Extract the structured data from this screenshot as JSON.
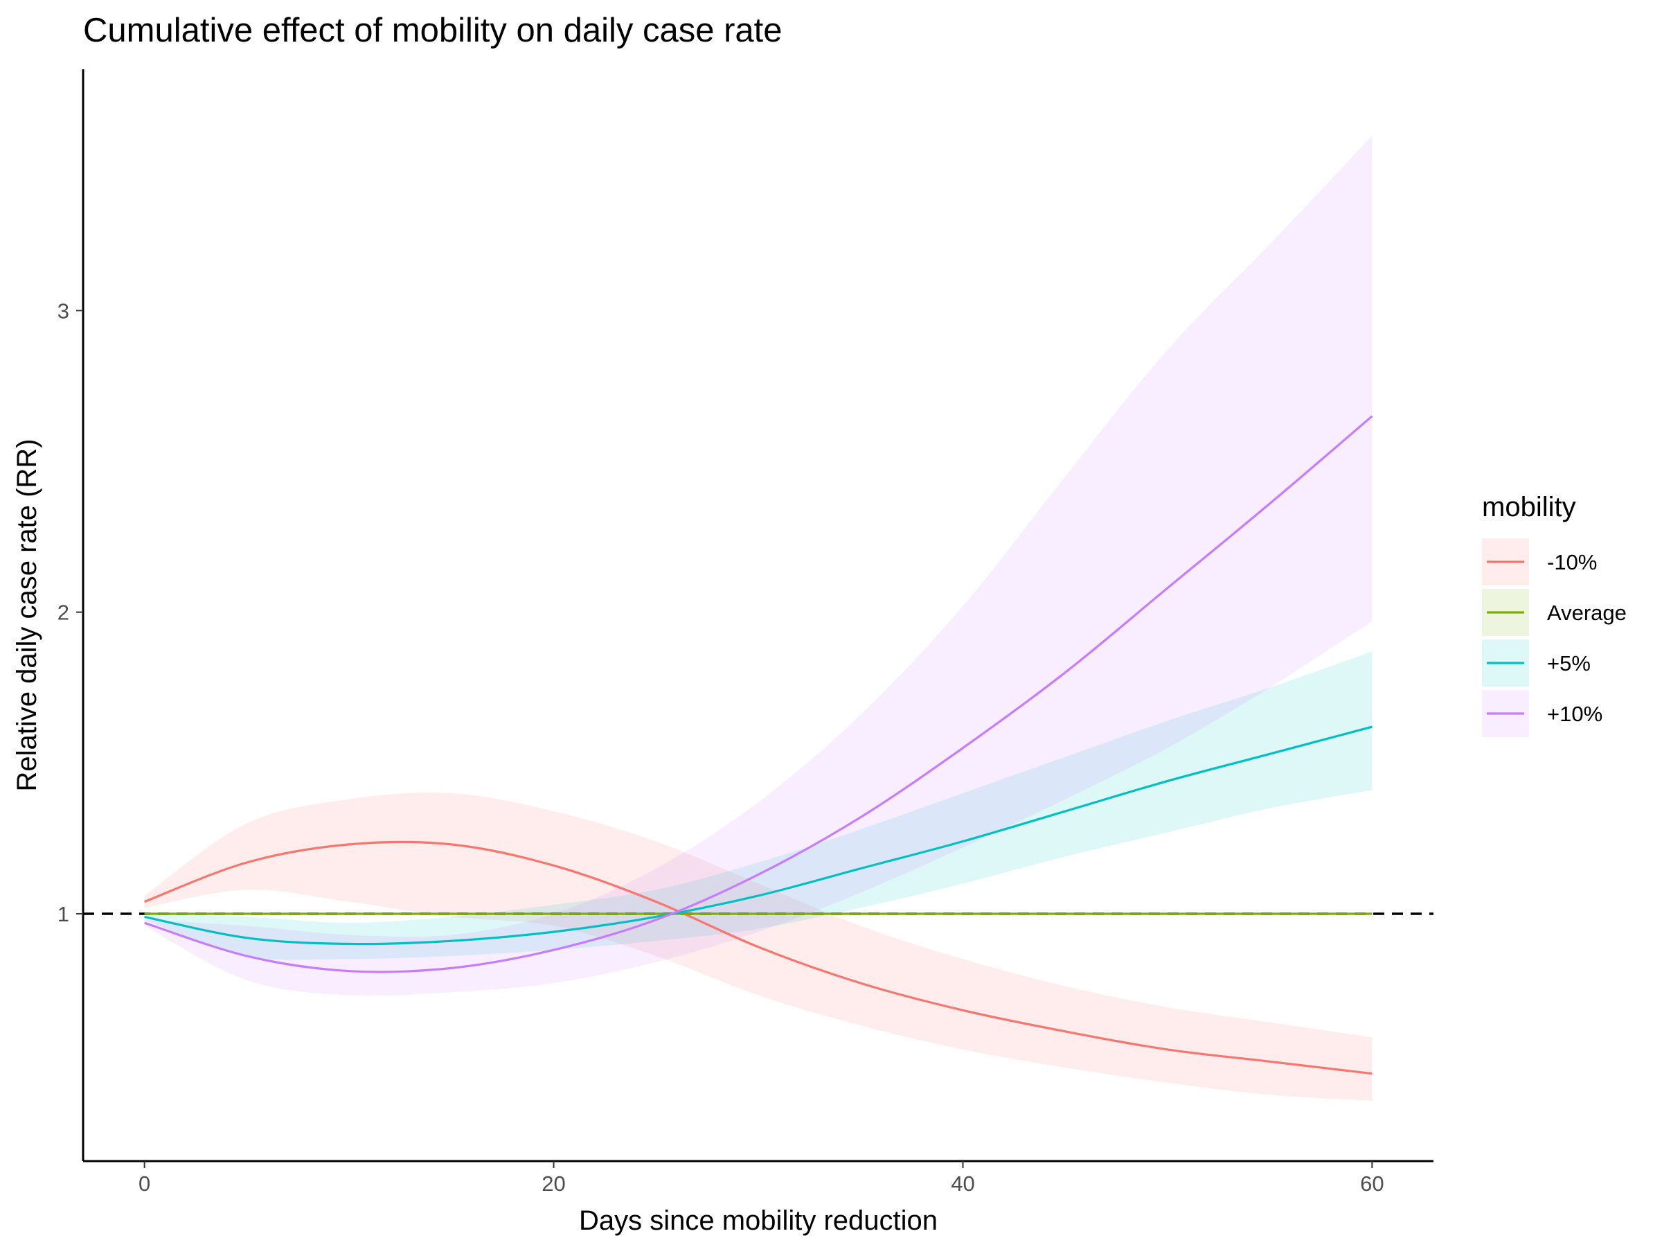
{
  "chart_data": {
    "type": "line",
    "title": "Cumulative effect of mobility on daily case rate",
    "xlabel": "Days since mobility reduction",
    "ylabel": "Relative daily case rate (RR)",
    "xlim": [
      -3,
      63
    ],
    "ylim": [
      0.18,
      3.8
    ],
    "xticks": [
      {
        "value": 0,
        "label": "0"
      },
      {
        "value": 20,
        "label": "20"
      },
      {
        "value": 40,
        "label": "40"
      },
      {
        "value": 60,
        "label": "60"
      }
    ],
    "yticks": [
      {
        "value": 1,
        "label": "1"
      },
      {
        "value": 2,
        "label": "2"
      },
      {
        "value": 3,
        "label": "3"
      }
    ],
    "reference_line": {
      "y": 1,
      "style": "dashed",
      "color": "#000000"
    },
    "grid": false,
    "legend": {
      "title": "mobility",
      "position": "right"
    },
    "x": [
      0,
      5,
      10,
      15,
      20,
      25,
      30,
      35,
      40,
      45,
      50,
      55,
      60
    ],
    "series": [
      {
        "name": "-10%",
        "color": "#F8766D",
        "fill": "#F8766D",
        "values": [
          1.04,
          1.17,
          1.23,
          1.23,
          1.16,
          1.04,
          0.89,
          0.77,
          0.68,
          0.61,
          0.55,
          0.51,
          0.47
        ],
        "lower": [
          1.02,
          1.08,
          1.04,
          0.99,
          0.96,
          0.86,
          0.73,
          0.63,
          0.55,
          0.49,
          0.44,
          0.4,
          0.38
        ],
        "upper": [
          1.06,
          1.3,
          1.38,
          1.4,
          1.34,
          1.24,
          1.1,
          0.96,
          0.85,
          0.76,
          0.69,
          0.64,
          0.59
        ]
      },
      {
        "name": "Average",
        "color": "#7CAE00",
        "fill": "#7CAE00",
        "values": [
          1,
          1,
          1,
          1,
          1,
          1,
          1,
          1,
          1,
          1,
          1,
          1,
          1
        ],
        "lower": [
          0.997,
          0.997,
          0.997,
          0.997,
          0.997,
          0.997,
          0.997,
          0.997,
          0.997,
          0.997,
          0.997,
          0.997,
          0.997
        ],
        "upper": [
          1.003,
          1.003,
          1.003,
          1.003,
          1.003,
          1.003,
          1.003,
          1.003,
          1.003,
          1.003,
          1.003,
          1.003,
          1.003
        ]
      },
      {
        "name": "+5%",
        "color": "#00BFC4",
        "fill": "#00BFC4",
        "values": [
          0.99,
          0.92,
          0.9,
          0.91,
          0.94,
          0.99,
          1.06,
          1.15,
          1.24,
          1.34,
          1.44,
          1.53,
          1.62
        ],
        "lower": [
          0.98,
          0.86,
          0.85,
          0.86,
          0.88,
          0.91,
          0.95,
          1.02,
          1.1,
          1.19,
          1.27,
          1.35,
          1.41
        ],
        "upper": [
          1.0,
          0.99,
          0.97,
          0.99,
          1.03,
          1.08,
          1.17,
          1.28,
          1.4,
          1.52,
          1.64,
          1.75,
          1.87
        ]
      },
      {
        "name": "+10%",
        "color": "#C77CFF",
        "fill": "#C77CFF",
        "values": [
          0.97,
          0.86,
          0.81,
          0.82,
          0.88,
          0.98,
          1.13,
          1.32,
          1.55,
          1.8,
          2.08,
          2.36,
          2.65
        ],
        "lower": [
          0.96,
          0.78,
          0.73,
          0.74,
          0.77,
          0.84,
          0.94,
          1.07,
          1.22,
          1.38,
          1.55,
          1.75,
          1.97
        ],
        "upper": [
          0.98,
          0.96,
          0.93,
          0.93,
          1.0,
          1.15,
          1.37,
          1.66,
          2.02,
          2.45,
          2.87,
          3.22,
          3.58
        ]
      }
    ]
  }
}
